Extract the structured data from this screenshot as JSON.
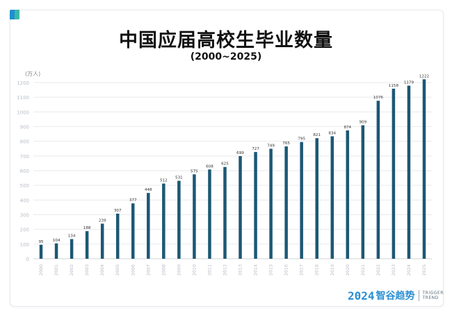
{
  "title": "中国应届高校生毕业数量",
  "subtitle": "(2000~2025)",
  "unit_label": "(万人)",
  "branding": {
    "year": "2024",
    "name": "智谷趋势",
    "en_line1": "TRIGGER",
    "en_line2": "TREND"
  },
  "colors": {
    "bar": "#1c5874",
    "grid": "#e8eaed",
    "tick": "#b8bec6",
    "label": "#333333",
    "brand": "#2a8fd1"
  },
  "chart_data": {
    "type": "bar",
    "title": "中国应届高校生毕业数量",
    "subtitle": "(2000~2025)",
    "xlabel": "",
    "ylabel": "(万人)",
    "ylim": [
      0,
      1200
    ],
    "yticks": [
      0,
      100,
      200,
      300,
      400,
      500,
      600,
      700,
      800,
      900,
      1000,
      1100,
      1200
    ],
    "grid": true,
    "categories": [
      "2000",
      "2001",
      "2002",
      "2003",
      "2004",
      "2005",
      "2006",
      "2007",
      "2008",
      "2009",
      "2010",
      "2011",
      "2012",
      "2013",
      "2014",
      "2015",
      "2016",
      "2017",
      "2018",
      "2019",
      "2020",
      "2021",
      "2022",
      "2023",
      "2024",
      "2025"
    ],
    "values": [
      95,
      104,
      134,
      188,
      239,
      307,
      377,
      448,
      512,
      531,
      575,
      608,
      625,
      699,
      727,
      749,
      765,
      795,
      821,
      834,
      874,
      909,
      1076,
      1158,
      1179,
      1222
    ]
  }
}
